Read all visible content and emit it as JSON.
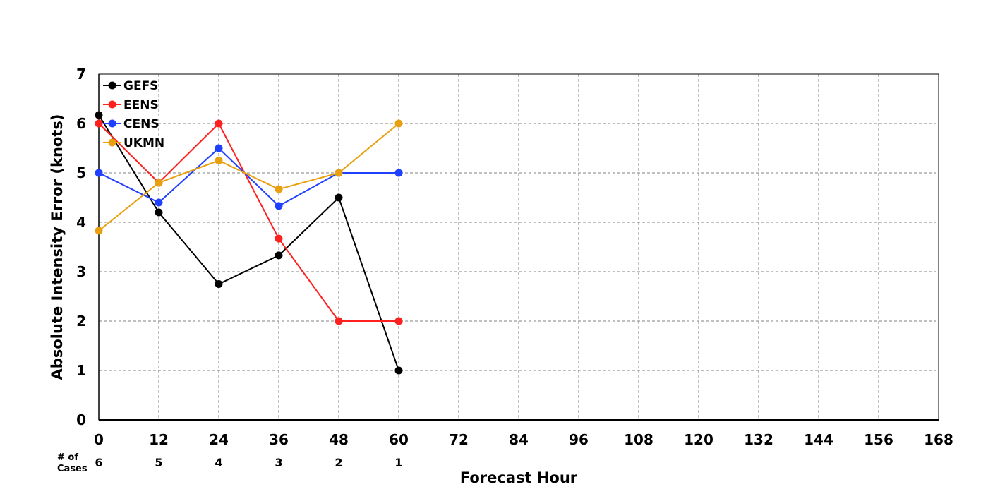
{
  "chart_data": {
    "type": "line",
    "title": "",
    "xlabel": "Forecast Hour",
    "ylabel": "Absolute Intensity Error (knots)",
    "xlim": [
      0,
      168
    ],
    "ylim": [
      0,
      7
    ],
    "x_ticks": [
      0,
      12,
      24,
      36,
      48,
      60,
      72,
      84,
      96,
      108,
      120,
      132,
      144,
      156,
      168
    ],
    "y_ticks": [
      0,
      1,
      2,
      3,
      4,
      5,
      6,
      7
    ],
    "grid": true,
    "legend_position": "top-left",
    "cases_header": [
      "# of",
      "Cases"
    ],
    "cases": [
      {
        "x": 0,
        "n": "6"
      },
      {
        "x": 12,
        "n": "5"
      },
      {
        "x": 24,
        "n": "4"
      },
      {
        "x": 36,
        "n": "3"
      },
      {
        "x": 48,
        "n": "2"
      },
      {
        "x": 60,
        "n": "1"
      }
    ],
    "series": [
      {
        "name": "GEFS",
        "color": "#000000",
        "x": [
          0,
          12,
          24,
          36,
          48,
          60
        ],
        "values": [
          6.17,
          4.2,
          2.75,
          3.33,
          4.5,
          1.0
        ]
      },
      {
        "name": "EENS",
        "color": "#ff2020",
        "x": [
          0,
          12,
          24,
          36,
          48,
          60
        ],
        "values": [
          6.0,
          4.8,
          6.0,
          3.67,
          2.0,
          2.0
        ]
      },
      {
        "name": "CENS",
        "color": "#2040ff",
        "x": [
          0,
          12,
          24,
          36,
          48,
          60
        ],
        "values": [
          5.0,
          4.4,
          5.5,
          4.33,
          5.0,
          5.0
        ]
      },
      {
        "name": "UKMN",
        "color": "#e8a010",
        "x": [
          0,
          12,
          24,
          36,
          48,
          60
        ],
        "values": [
          3.83,
          4.8,
          5.25,
          4.67,
          5.0,
          6.0
        ]
      }
    ]
  }
}
